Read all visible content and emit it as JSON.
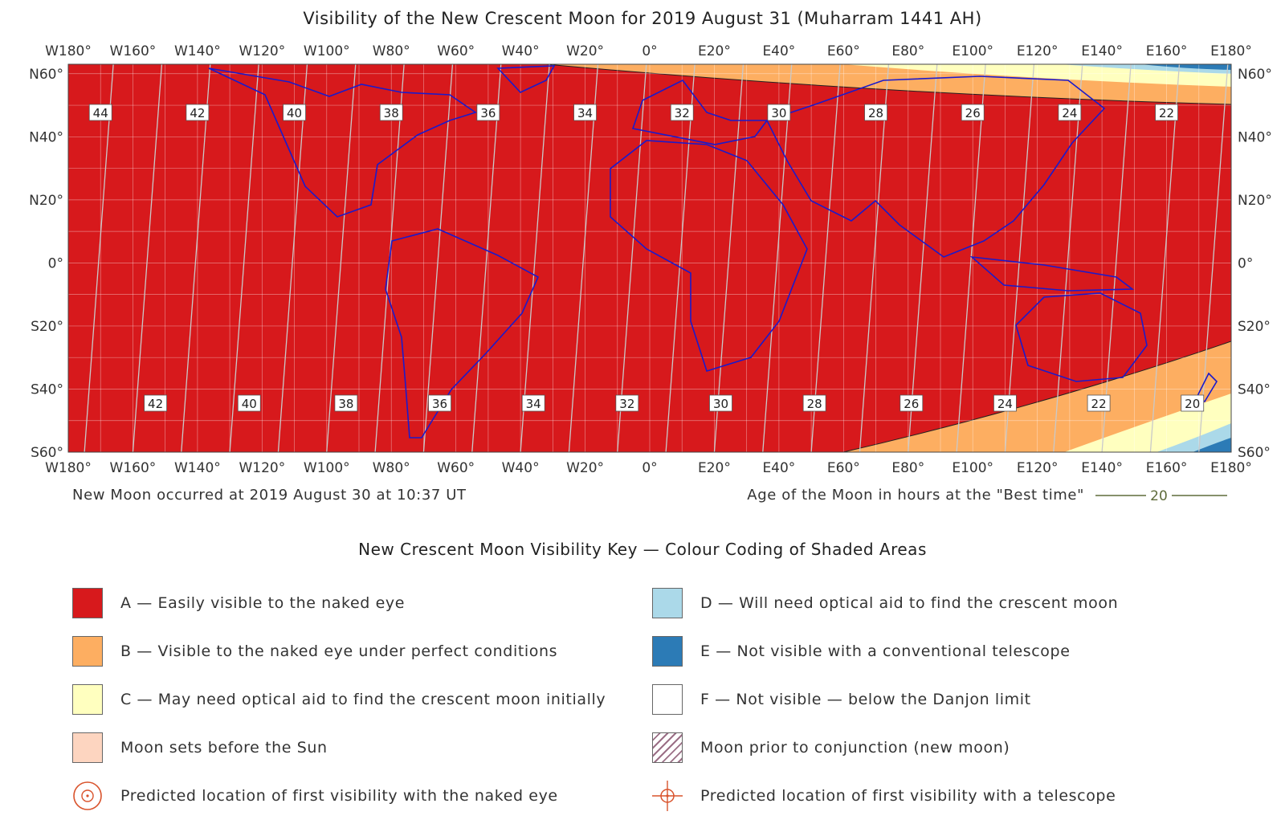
{
  "title": "Visibility of the New Crescent Moon for 2019 August 31 (Muharram 1441 AH)",
  "new_moon_text": "New Moon occurred at 2019 August 30 at 10:37 UT",
  "age_legend": {
    "text": "Age of the Moon in hours at the \"Best time\"",
    "sample_value": "20",
    "line_color": "#5e6b3a"
  },
  "map": {
    "lon_labels": [
      "W180°",
      "W160°",
      "W140°",
      "W120°",
      "W100°",
      "W80°",
      "W60°",
      "W40°",
      "W20°",
      "0°",
      "E20°",
      "E40°",
      "E60°",
      "E80°",
      "E100°",
      "E120°",
      "E140°",
      "E160°",
      "E180°"
    ],
    "lat_labels": [
      "N60°",
      "N40°",
      "N20°",
      "0°",
      "S20°",
      "S40°",
      "S60°"
    ],
    "top_age_labels": [
      "44",
      "42",
      "40",
      "38",
      "36",
      "34",
      "32",
      "30",
      "28",
      "26",
      "24",
      "22"
    ],
    "top_age_lons": [
      -170,
      -140,
      -110,
      -80,
      -50,
      -20,
      10,
      40,
      70,
      100,
      130,
      160
    ],
    "bottom_age_labels": [
      "42",
      "40",
      "38",
      "36",
      "34",
      "32",
      "30",
      "28",
      "26",
      "24",
      "22",
      "20"
    ],
    "bottom_age_lons": [
      -153,
      -124,
      -94,
      -65,
      -36,
      -7,
      22,
      51,
      81,
      110,
      139,
      168
    ]
  },
  "zones": {
    "A": {
      "color": "#d7191c"
    },
    "B": {
      "color": "#fdae61"
    },
    "C": {
      "color": "#ffffbf"
    },
    "D": {
      "color": "#abd9e9"
    },
    "E": {
      "color": "#2c7bb6"
    },
    "F": {
      "color": "#ffffff"
    },
    "sets": {
      "color": "#fdd5c0"
    }
  },
  "key": {
    "title": "New Crescent Moon Visibility Key — Colour Coding of Shaded Areas",
    "items": [
      {
        "label": "A — Easily visible to the naked eye",
        "color": "#d7191c"
      },
      {
        "label": "B — Visible to the naked eye under perfect conditions",
        "color": "#fdae61"
      },
      {
        "label": "C — May need optical aid to find the crescent moon initially",
        "color": "#ffffbf"
      },
      {
        "label": "Moon sets before the Sun",
        "color": "#fdd5c0"
      },
      {
        "label": "Predicted location of first visibility with the naked eye",
        "icon": "naked-eye-marker-icon"
      },
      {
        "label": "D — Will need optical aid to find the crescent moon",
        "color": "#abd9e9"
      },
      {
        "label": "E — Not visible with a conventional telescope",
        "color": "#2c7bb6"
      },
      {
        "label": "F — Not visible — below the Danjon limit",
        "color": "#ffffff"
      },
      {
        "label": "Moon prior to conjunction (new moon)",
        "icon": "hatch-swatch-icon"
      },
      {
        "label": "Predicted location of first visibility with a telescope",
        "icon": "telescope-marker-icon"
      }
    ]
  }
}
